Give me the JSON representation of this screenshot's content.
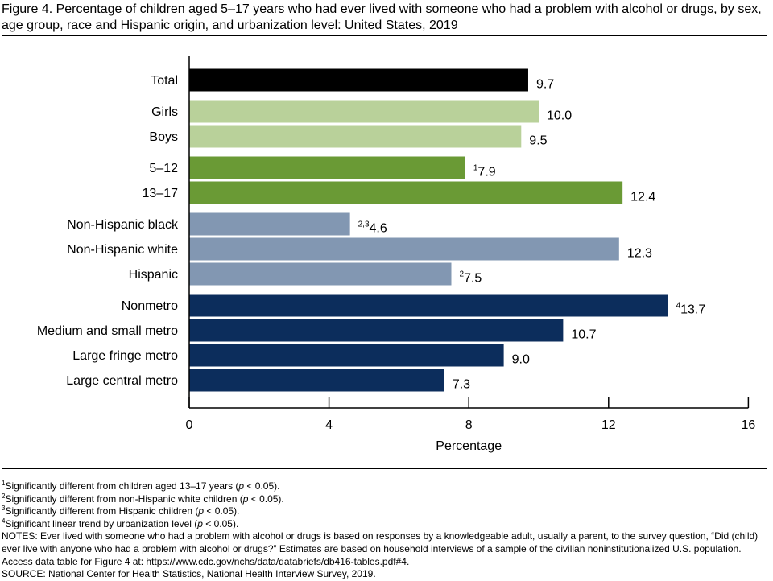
{
  "title": "Figure 4. Percentage of children aged 5–17 years who had ever lived with someone who had a problem with alcohol or drugs, by sex, age group, race and Hispanic origin, and urbanization level: United States, 2019",
  "chart_data": {
    "type": "bar",
    "orientation": "horizontal",
    "xlabel": "Percentage",
    "xlim": [
      0,
      16
    ],
    "xticks": [
      0,
      4,
      8,
      12,
      16
    ],
    "grid": false,
    "legend": "none",
    "groups": [
      {
        "color": "#000000",
        "bars": [
          {
            "category": "Total",
            "value": 9.7,
            "label": "9.7",
            "note": ""
          }
        ]
      },
      {
        "color": "#b9d19a",
        "bars": [
          {
            "category": "Girls",
            "value": 10.0,
            "label": "10.0",
            "note": ""
          },
          {
            "category": "Boys",
            "value": 9.5,
            "label": "9.5",
            "note": ""
          }
        ]
      },
      {
        "color": "#6a9a35",
        "bars": [
          {
            "category": "5–12",
            "value": 7.9,
            "label": "7.9",
            "note": "1"
          },
          {
            "category": "13–17",
            "value": 12.4,
            "label": "12.4",
            "note": ""
          }
        ]
      },
      {
        "color": "#8297b2",
        "bars": [
          {
            "category": "Non-Hispanic black",
            "value": 4.6,
            "label": "4.6",
            "note": "2,3"
          },
          {
            "category": "Non-Hispanic white",
            "value": 12.3,
            "label": "12.3",
            "note": ""
          },
          {
            "category": "Hispanic",
            "value": 7.5,
            "label": "7.5",
            "note": "2"
          }
        ]
      },
      {
        "color": "#0c2d5c",
        "bars": [
          {
            "category": "Nonmetro",
            "value": 13.7,
            "label": "13.7",
            "note": "4"
          },
          {
            "category": "Medium and small metro",
            "value": 10.7,
            "label": "10.7",
            "note": ""
          },
          {
            "category": "Large fringe metro",
            "value": 9.0,
            "label": "9.0",
            "note": ""
          },
          {
            "category": "Large central metro",
            "value": 7.3,
            "label": "7.3",
            "note": ""
          }
        ]
      }
    ]
  },
  "footnotes": [
    {
      "sup": "1",
      "text": "Significantly different from children aged 13–17 years (",
      "italic": "p",
      "tail": " < 0.05)."
    },
    {
      "sup": "2",
      "text": "Significantly different from non-Hispanic white children (",
      "italic": "p",
      "tail": " < 0.05)."
    },
    {
      "sup": "3",
      "text": "Significantly different from Hispanic children (",
      "italic": "p",
      "tail": " < 0.05)."
    },
    {
      "sup": "4",
      "text": "Significant linear trend by urbanization level (",
      "italic": "p",
      "tail": " < 0.05)."
    }
  ],
  "notes": "NOTES: Ever lived with someone who had a problem with alcohol or drugs is based on responses by a knowledgeable adult, usually a parent, to the survey question, “Did (child) ever live with anyone who had a problem with alcohol or drugs?” Estimates are based on household interviews of a sample of the civilian noninstitutionalized U.S. population. Access data table for Figure 4 at: https://www.cdc.gov/nchs/data/databriefs/db416-tables.pdf#4.",
  "source": "SOURCE: National Center for Health Statistics, National Health Interview Survey, 2019."
}
